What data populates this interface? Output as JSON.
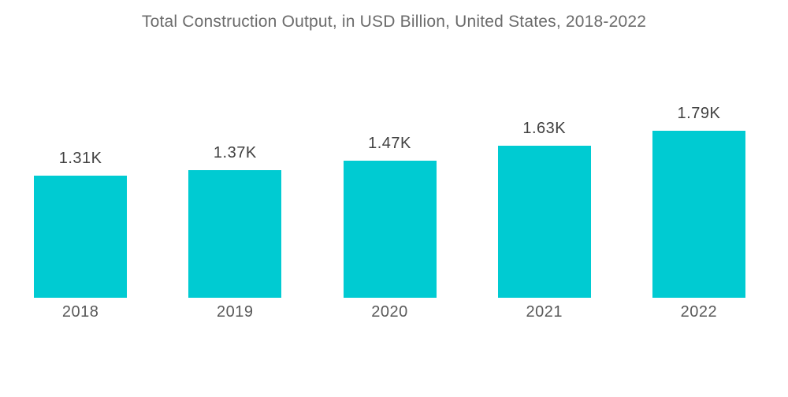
{
  "chart_data": {
    "type": "bar",
    "title": "Total Construction Output, in USD Billion, United States, 2018-2022",
    "categories": [
      "2018",
      "2019",
      "2020",
      "2021",
      "2022"
    ],
    "values": [
      1310,
      1370,
      1470,
      1630,
      1790
    ],
    "value_labels": [
      "1.31K",
      "1.37K",
      "1.47K",
      "1.63K",
      "1.79K"
    ],
    "unit": "USD Billion",
    "xlabel": "",
    "ylabel": "",
    "ylim": [
      0,
      1900
    ],
    "grid": false,
    "legend": "none",
    "axes_hidden": true,
    "bar_color": "#00CBD2",
    "title_color": "#6b6b6b",
    "value_label_color": "#404040",
    "category_label_color": "#595959",
    "background_color": "#ffffff"
  }
}
